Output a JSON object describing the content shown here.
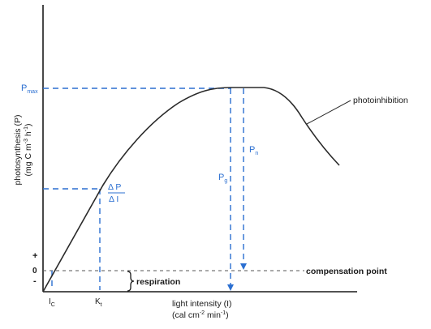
{
  "labels": {
    "pmax": "P",
    "pmax_sub": "max",
    "y_axis_line1": "photosynthesis (P)",
    "y_axis_line2": "(mg C m",
    "y_axis_sup1": "-3",
    "y_axis_mid": " h",
    "y_axis_sup2": "-1",
    "y_axis_end": ")",
    "plus": "+",
    "zero": "0",
    "minus": "-",
    "ic": "I",
    "ic_sub": "C",
    "kt": "K",
    "kt_sub": "t",
    "x_axis_line1": "light intensity (I)",
    "x_axis_line2": "(cal cm",
    "x_axis_sup1": "-2",
    "x_axis_mid": " min",
    "x_axis_sup2": "-1",
    "x_axis_end": ")",
    "delta_p": "Δ P",
    "delta_i": "Δ I",
    "pg": "P",
    "pg_sub": "g",
    "pn": "P",
    "pn_sub": "n",
    "photoinhibition": "photoinhibition",
    "compensation_point": "compensation point",
    "respiration": "respiration"
  }
}
